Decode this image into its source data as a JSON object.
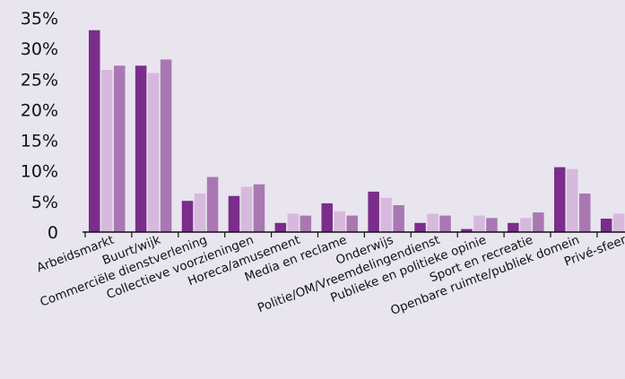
{
  "chart_data": {
    "type": "bar",
    "title": "",
    "xlabel": "",
    "ylabel": "",
    "ylim": [
      0,
      35
    ],
    "yticks": [
      "0",
      "5%",
      "10%",
      "15%",
      "20%",
      "25%",
      "30%",
      "35%"
    ],
    "grid": false,
    "legend": "none",
    "categories": [
      "Arbeidsmarkt",
      "Buurt/wijk",
      "Commerciële dienstverlening",
      "Collectieve voorzieningen",
      "Horeca/amusement",
      "Media en reclame",
      "Onderwijs",
      "Politie/OM/Vreemdelingendienst",
      "Publieke en politieke opinie",
      "Sport en recreatie",
      "Openbare ruimte/publiek domein",
      "Privé-sfeer"
    ],
    "series": [
      {
        "color": "#7b2d8b",
        "values": [
          33,
          27.2,
          5.1,
          5.9,
          1.5,
          4.7,
          6.6,
          1.5,
          0.5,
          1.5,
          10.6,
          2.2
        ]
      },
      {
        "color": "#d7b9dd",
        "values": [
          26.5,
          26,
          6.3,
          7.4,
          3,
          3.4,
          5.6,
          3,
          2.7,
          2.3,
          10.3,
          3
        ]
      },
      {
        "color": "#a978b3",
        "values": [
          27.2,
          28.2,
          9,
          7.8,
          2.7,
          2.7,
          4.4,
          2.7,
          2.3,
          3.2,
          6.3,
          4.4
        ]
      }
    ]
  }
}
